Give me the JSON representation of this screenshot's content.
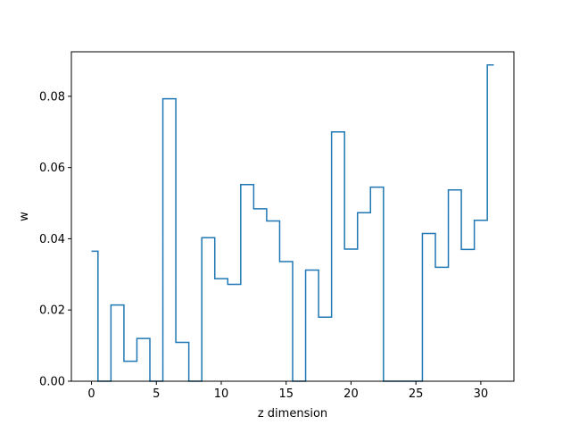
{
  "chart_data": {
    "type": "line",
    "drawstyle": "steps-mid",
    "title": "",
    "xlabel": "z dimension",
    "ylabel": "w",
    "xlim": [
      -1.55,
      32.55
    ],
    "ylim": [
      0.0,
      0.0925
    ],
    "x_ticks": [
      0,
      5,
      10,
      15,
      20,
      25,
      30
    ],
    "x_tick_labels": [
      "0",
      "5",
      "10",
      "15",
      "20",
      "25",
      "30"
    ],
    "y_ticks": [
      0.0,
      0.02,
      0.04,
      0.06,
      0.08
    ],
    "y_tick_labels": [
      "0.00",
      "0.02",
      "0.04",
      "0.06",
      "0.08"
    ],
    "grid": false,
    "legend": "none",
    "series": [
      {
        "color": "#1f77b4",
        "x": [
          0,
          1,
          2,
          3,
          4,
          5,
          6,
          7,
          8,
          9,
          10,
          11,
          12,
          13,
          14,
          15,
          16,
          17,
          18,
          19,
          20,
          21,
          22,
          23,
          24,
          25,
          26,
          27,
          28,
          29,
          30,
          31
        ],
        "values": [
          0.0365,
          0.0,
          0.0214,
          0.0056,
          0.012,
          0.0,
          0.0793,
          0.0109,
          0.0,
          0.0403,
          0.0288,
          0.0272,
          0.0552,
          0.0484,
          0.045,
          0.0336,
          0.0,
          0.0312,
          0.018,
          0.07,
          0.0371,
          0.0473,
          0.0545,
          0.0,
          0.0,
          0.0,
          0.0415,
          0.032,
          0.0537,
          0.037,
          0.0452,
          0.0888
        ]
      }
    ]
  }
}
